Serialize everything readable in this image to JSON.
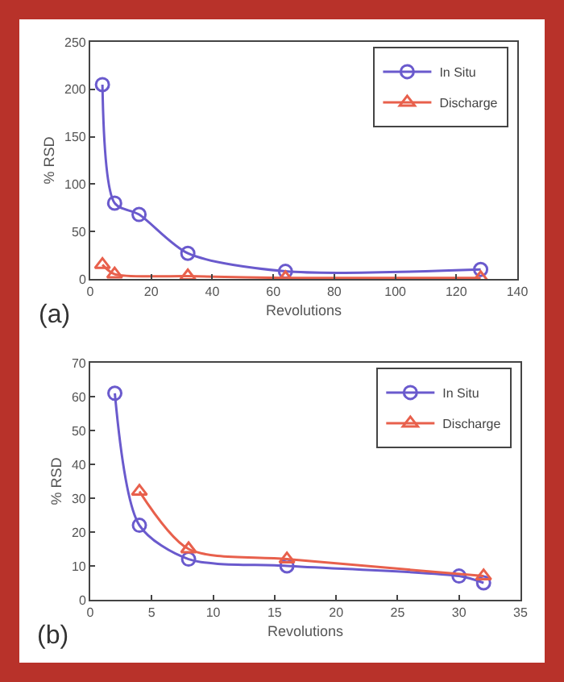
{
  "chart_data": [
    {
      "type": "line",
      "xlabel": "Revolutions",
      "ylabel": "% RSD",
      "annotations": [
        "(a)"
      ],
      "xlim": [
        0,
        140
      ],
      "xticks": [
        0,
        20,
        40,
        60,
        80,
        100,
        120,
        140
      ],
      "ylim": [
        0,
        250
      ],
      "yticks": [
        0,
        50,
        100,
        150,
        200,
        250
      ],
      "legend": "top right",
      "grid": false,
      "series": [
        {
          "name": "In Situ",
          "color": "#6a5acd",
          "marker": "circle",
          "x": [
            4,
            8,
            16,
            32,
            64,
            128
          ],
          "values": [
            205,
            80,
            68,
            27,
            8,
            10
          ]
        },
        {
          "name": "Discharge",
          "color": "#e8604c",
          "marker": "triangle",
          "x": [
            4,
            8,
            32,
            64,
            128
          ],
          "values": [
            15,
            5,
            3,
            1,
            1
          ]
        }
      ]
    },
    {
      "type": "line",
      "xlabel": "Revolutions",
      "ylabel": "% RSD",
      "annotations": [
        "(b)"
      ],
      "xlim": [
        0,
        35
      ],
      "xticks": [
        0,
        5,
        10,
        15,
        20,
        25,
        30,
        35
      ],
      "ylim": [
        0,
        70
      ],
      "yticks": [
        0,
        10,
        20,
        30,
        40,
        50,
        60,
        70
      ],
      "legend": "top right",
      "grid": false,
      "series": [
        {
          "name": "In Situ",
          "color": "#6a5acd",
          "marker": "circle",
          "x": [
            2,
            4,
            8,
            16,
            30,
            32
          ],
          "values": [
            61,
            22,
            12,
            10,
            7,
            5
          ]
        },
        {
          "name": "Discharge",
          "color": "#e8604c",
          "marker": "triangle",
          "x": [
            4,
            8,
            16,
            32
          ],
          "values": [
            32,
            15,
            12,
            7
          ]
        }
      ]
    }
  ]
}
